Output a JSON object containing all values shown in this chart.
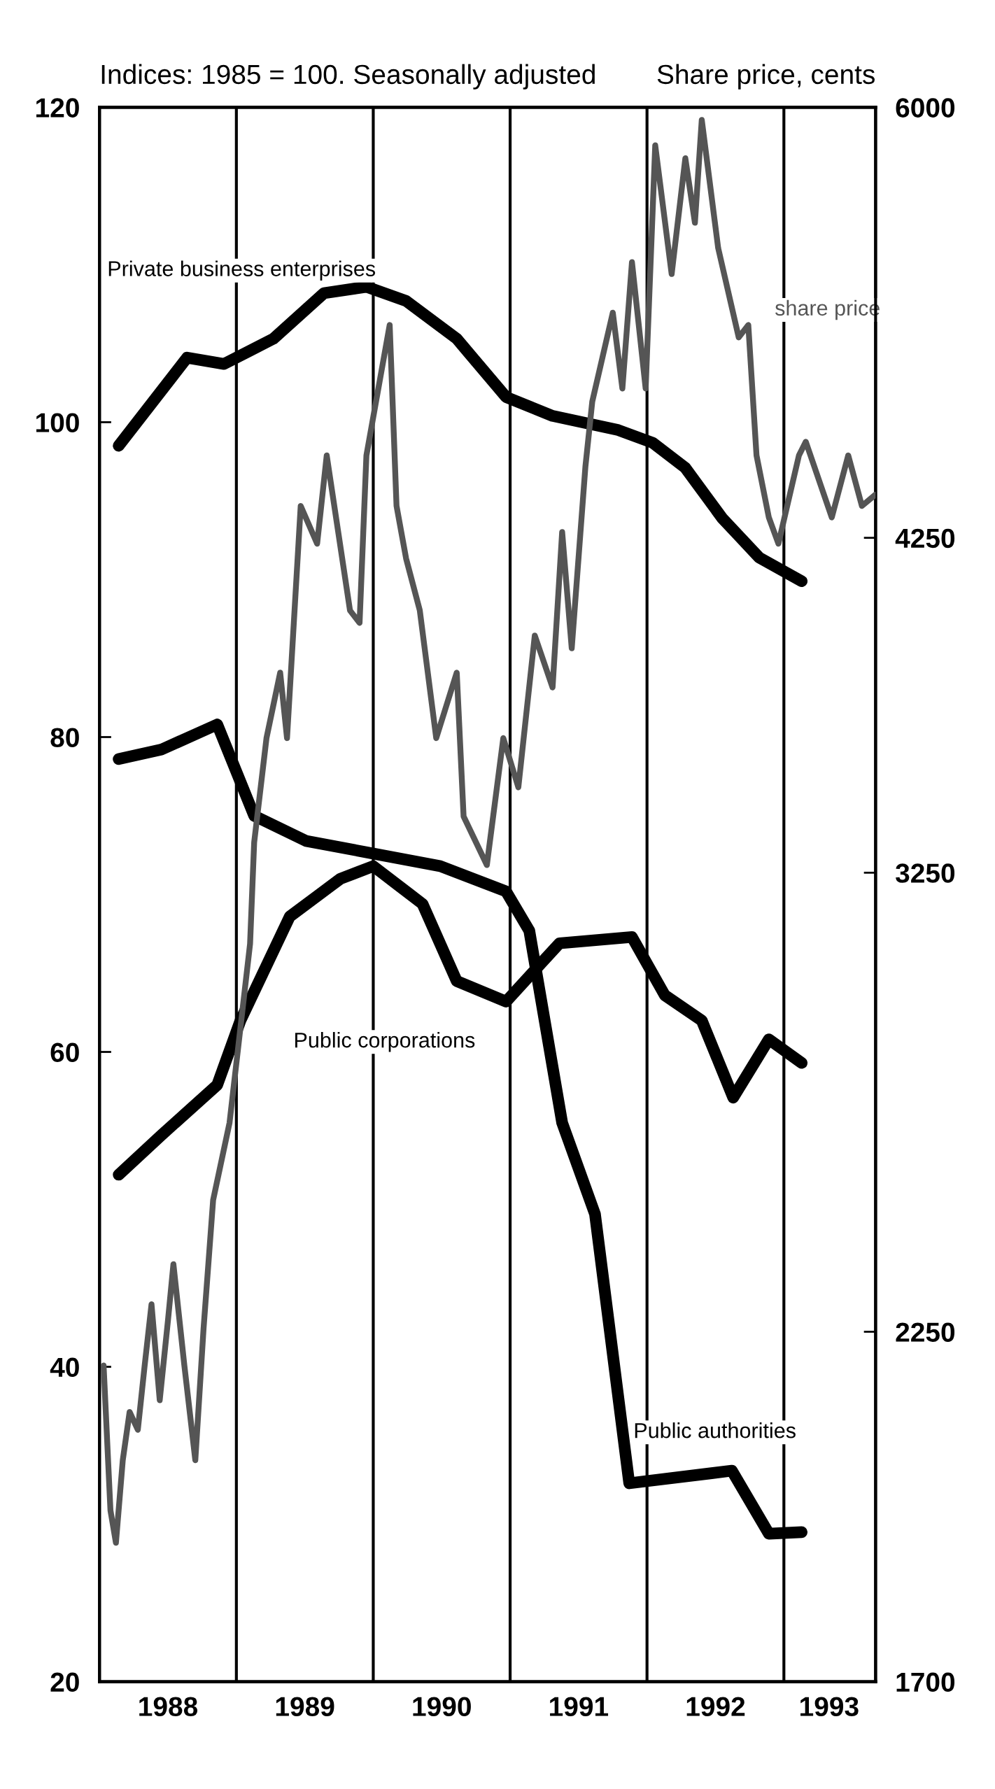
{
  "chart_data": {
    "type": "line",
    "ylabel": "Indices: 1985 = 100. Seasonally adjusted",
    "y2label": "Share price, cents",
    "xlim": [
      1988,
      1993.67
    ],
    "xticks": [
      {
        "value": 1988.5,
        "label": "1988"
      },
      {
        "value": 1989.5,
        "label": "1989"
      },
      {
        "value": 1990.5,
        "label": "1990"
      },
      {
        "value": 1991.5,
        "label": "1991"
      },
      {
        "value": 1992.5,
        "label": "1992"
      },
      {
        "value": 1993.33,
        "label": "1993"
      }
    ],
    "ylim": [
      20,
      120
    ],
    "yticks": [
      20,
      40,
      60,
      80,
      100,
      120
    ],
    "y2lim": [
      1700,
      6000
    ],
    "y2ticks": [
      1700,
      2250,
      3250,
      4250,
      6000
    ],
    "log": "y2",
    "grid": false,
    "legend": false,
    "marker": "none",
    "line_style": "solid",
    "ref_lines": [
      {
        "axis": "x",
        "value": 1989,
        "color": "#000000"
      },
      {
        "axis": "x",
        "value": 1990,
        "color": "#000000"
      },
      {
        "axis": "x",
        "value": 1991,
        "color": "#000000"
      },
      {
        "axis": "x",
        "value": 1992,
        "color": "#000000"
      },
      {
        "axis": "x",
        "value": 1993,
        "color": "#000000"
      }
    ],
    "series": [
      {
        "name": "Private business enterprises",
        "color": "#000000",
        "x": [
          1988.14,
          1988.64,
          1988.91,
          1989.27,
          1989.64,
          1989.95,
          1990.24,
          1990.61,
          1990.97,
          1991.31,
          1991.79,
          1992.04,
          1992.28,
          1992.55,
          1992.82,
          1993.13
        ],
        "values": [
          98.5,
          104.1,
          103.7,
          105.3,
          108.2,
          108.6,
          107.7,
          105.3,
          101.6,
          100.4,
          99.5,
          98.7,
          97.1,
          93.9,
          91.4,
          89.9
        ]
      },
      {
        "name": "Public authorities",
        "color": "#000000",
        "x": [
          1988.14,
          1988.45,
          1988.86,
          1989.13,
          1989.51,
          1990.0,
          1990.49,
          1990.97,
          1991.14,
          1991.38,
          1991.62,
          1991.87,
          1992.62,
          1992.89,
          1993.13
        ],
        "values": [
          78.6,
          79.2,
          80.8,
          75.0,
          73.4,
          72.6,
          71.8,
          70.2,
          67.7,
          55.5,
          49.7,
          32.6,
          33.4,
          29.4,
          29.5
        ]
      },
      {
        "name": "Public corporations",
        "color": "#000000",
        "x": [
          1988.14,
          1988.45,
          1988.86,
          1989.03,
          1989.39,
          1989.76,
          1990.0,
          1990.36,
          1990.61,
          1990.97,
          1991.36,
          1991.89,
          1992.13,
          1992.4,
          1992.63,
          1992.89,
          1993.13
        ],
        "values": [
          52.2,
          54.7,
          57.9,
          62.0,
          68.6,
          71.0,
          71.8,
          69.4,
          64.5,
          63.2,
          66.9,
          67.3,
          63.6,
          62.0,
          57.1,
          60.8,
          59.3
        ]
      },
      {
        "name": "share price",
        "color": "#555555",
        "axis": "y2",
        "x": [
          1988.03,
          1988.08,
          1988.12,
          1988.17,
          1988.22,
          1988.28,
          1988.33,
          1988.38,
          1988.44,
          1988.5,
          1988.54,
          1988.62,
          1988.7,
          1988.76,
          1988.83,
          1988.95,
          1989.1,
          1989.13,
          1989.22,
          1989.32,
          1989.37,
          1989.47,
          1989.59,
          1989.66,
          1989.83,
          1989.9,
          1989.95,
          1990.12,
          1990.17,
          1990.24,
          1990.34,
          1990.46,
          1990.61,
          1990.66,
          1990.83,
          1990.95,
          1991.06,
          1991.18,
          1991.31,
          1991.38,
          1991.45,
          1991.55,
          1991.6,
          1991.75,
          1991.82,
          1991.89,
          1991.99,
          1992.06,
          1992.18,
          1992.28,
          1992.35,
          1992.4,
          1992.52,
          1992.67,
          1992.74,
          1992.8,
          1992.89,
          1992.96,
          1993.11,
          1993.16,
          1993.35,
          1993.47,
          1993.57,
          1993.67
        ],
        "values": [
          2190,
          1950,
          1900,
          2030,
          2110,
          2080,
          2190,
          2300,
          2130,
          2270,
          2375,
          2190,
          2030,
          2255,
          2500,
          2660,
          3070,
          3330,
          3620,
          3815,
          3620,
          4360,
          4230,
          4540,
          4010,
          3970,
          4540,
          5040,
          4360,
          4180,
          4010,
          3620,
          3815,
          3400,
          3270,
          3620,
          3480,
          3930,
          3770,
          4270,
          3890,
          4500,
          4740,
          5090,
          4790,
          5300,
          4790,
          5820,
          5250,
          5760,
          5470,
          5940,
          5360,
          4990,
          5040,
          4540,
          4320,
          4230,
          4540,
          4590,
          4320,
          4540,
          4360,
          4400
        ]
      }
    ]
  }
}
